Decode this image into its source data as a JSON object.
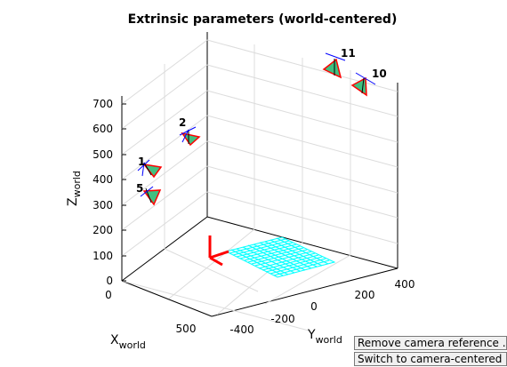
{
  "figure": {
    "title": "Extrinsic parameters (world-centered)"
  },
  "axes": {
    "z_label": "Z",
    "z_sub": "world",
    "x_label": "X",
    "x_sub": "world",
    "y_label": "Y",
    "y_sub": "world",
    "z_ticks": [
      "0",
      "100",
      "200",
      "300",
      "400",
      "500",
      "600",
      "700"
    ],
    "x_ticks": [
      "0",
      "500"
    ],
    "y_ticks": [
      "-400",
      "-200",
      "0",
      "200",
      "400"
    ]
  },
  "cameras": [
    "1",
    "2",
    "5",
    "10",
    "11"
  ],
  "buttons": {
    "remove": "Remove camera reference ...",
    "switch": "Switch to camera-centered ..."
  },
  "colors": {
    "grid_pattern": "#00ffff",
    "camera_face": "#40c080",
    "camera_edge": "#ff0000",
    "camera_axis": "#0000ff",
    "world_axes": "#ff0000"
  }
}
